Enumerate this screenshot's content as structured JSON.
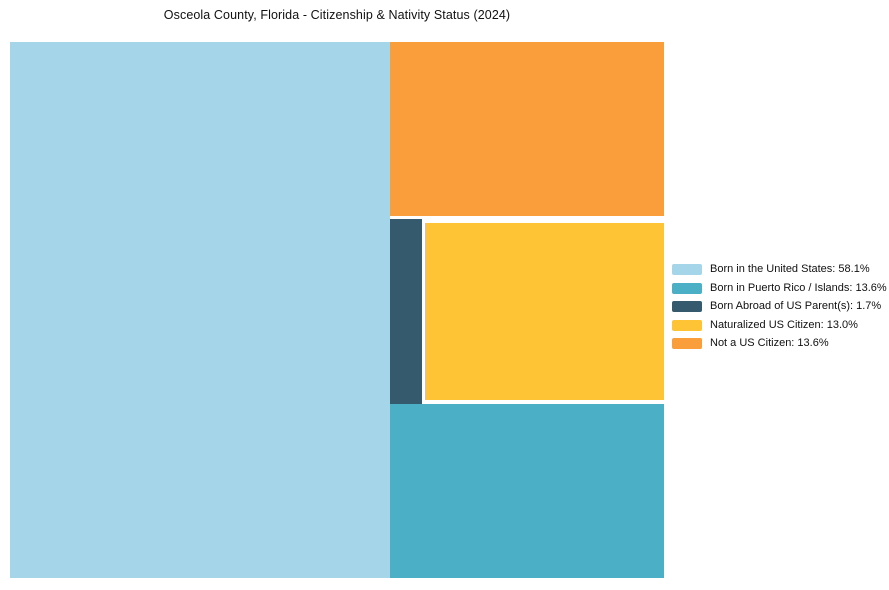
{
  "page": {
    "background": "#ffffff"
  },
  "chart_data": {
    "type": "treemap",
    "title": "Osceola County, Florida - Citizenship & Nativity Status (2024)",
    "legend_position": "right",
    "series": [
      {
        "name": "Born in the United States",
        "value": 58.1,
        "label": "Born in the United States: 58.1%",
        "color": "#A5D5E8"
      },
      {
        "name": "Born in Puerto Rico / Islands",
        "value": 13.6,
        "label": "Born in Puerto Rico / Islands: 13.6%",
        "color": "#4BB0C5"
      },
      {
        "name": "Born Abroad of US Parent(s)",
        "value": 1.7,
        "label": "Born Abroad of US Parent(s): 1.7%",
        "color": "#35596D"
      },
      {
        "name": "Naturalized US Citizen",
        "value": 13.0,
        "label": "Naturalized US Citizen: 13.0%",
        "color": "#FEC435"
      },
      {
        "name": "Not a US Citizen",
        "value": 13.6,
        "label": "Not a US Citizen: 13.6%",
        "color": "#F99E3A"
      }
    ]
  }
}
